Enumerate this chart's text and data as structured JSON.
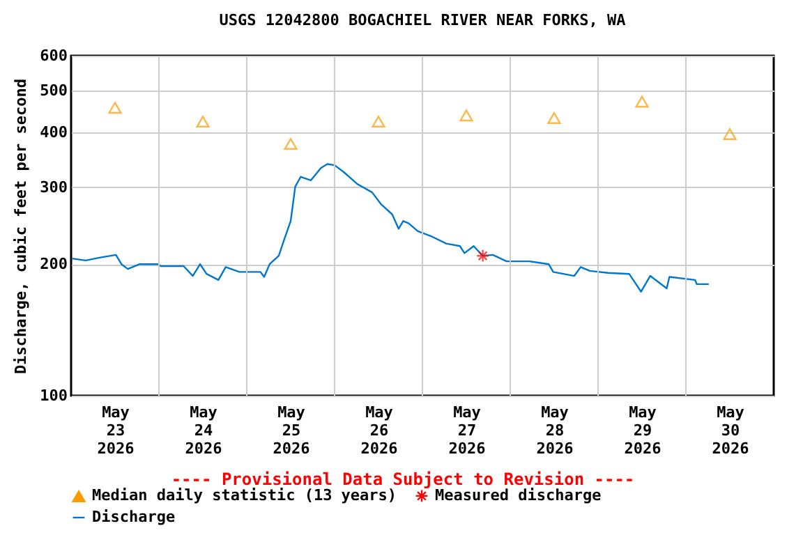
{
  "chart_data": {
    "type": "line",
    "title": "USGS 12042800 BOGACHIEL RIVER NEAR FORKS, WA",
    "ylabel": "Discharge, cubic feet per second",
    "annotations": [
      "---- Provisional Data Subject to Revision ----"
    ],
    "xlim": [
      "2026-05-23T00:00",
      "2026-05-31T00:00"
    ],
    "xticks": [
      {
        "value": "2026-05-23T12:00",
        "label": "May\n23\n2026"
      },
      {
        "value": "2026-05-24T00:00",
        "label": null
      },
      {
        "value": "2026-05-24T12:00",
        "label": "May\n24\n2026"
      },
      {
        "value": "2026-05-25T00:00",
        "label": null
      },
      {
        "value": "2026-05-25T12:00",
        "label": "May\n25\n2026"
      },
      {
        "value": "2026-05-26T00:00",
        "label": null
      },
      {
        "value": "2026-05-26T12:00",
        "label": "May\n26\n2026"
      },
      {
        "value": "2026-05-27T00:00",
        "label": null
      },
      {
        "value": "2026-05-27T12:00",
        "label": "May\n27\n2026"
      },
      {
        "value": "2026-05-28T00:00",
        "label": null
      },
      {
        "value": "2026-05-28T12:00",
        "label": "May\n28\n2026"
      },
      {
        "value": "2026-05-29T00:00",
        "label": null
      },
      {
        "value": "2026-05-29T12:00",
        "label": "May\n29\n2026"
      },
      {
        "value": "2026-05-30T00:00",
        "label": null
      },
      {
        "value": "2026-05-30T12:00",
        "label": "May\n30\n2026"
      }
    ],
    "ylim": [
      100,
      600
    ],
    "yticks": [
      100,
      200,
      300,
      400,
      500,
      600
    ],
    "log": "y",
    "grid": true,
    "legend": "bottom",
    "series": [
      {
        "name": "Median daily statistic (13 years)",
        "type": "scatter",
        "marker": "triangle",
        "color": "#ff9900",
        "x": [
          "2026-05-23T12:00",
          "2026-05-24T12:00",
          "2026-05-25T12:00",
          "2026-05-26T12:00",
          "2026-05-27T12:00",
          "2026-05-28T12:00",
          "2026-05-29T12:00",
          "2026-05-30T12:00"
        ],
        "values": [
          456,
          424,
          377,
          424,
          438,
          432,
          471,
          397
        ]
      },
      {
        "name": "Measured discharge",
        "type": "scatter",
        "marker": "cross",
        "color": "#ff0000",
        "x": [
          "2026-05-27T16:30"
        ],
        "values": [
          209
        ]
      },
      {
        "name": "Discharge",
        "type": "line",
        "color": "#0077cc",
        "x": [
          "2026-05-23T00:15",
          "2026-05-23T04:00",
          "2026-05-23T07:45",
          "2026-05-23T12:15",
          "2026-05-23T13:45",
          "2026-05-23T15:30",
          "2026-05-23T18:45",
          "2026-05-23T23:45",
          "2026-05-24T00:30",
          "2026-05-24T06:45",
          "2026-05-24T09:15",
          "2026-05-24T11:15",
          "2026-05-24T13:00",
          "2026-05-24T16:15",
          "2026-05-24T18:15",
          "2026-05-24T22:00",
          "2026-05-25T03:45",
          "2026-05-25T04:45",
          "2026-05-25T06:15",
          "2026-05-25T08:45",
          "2026-05-25T10:15",
          "2026-05-25T12:00",
          "2026-05-25T13:15",
          "2026-05-25T14:45",
          "2026-05-25T17:30",
          "2026-05-25T20:15",
          "2026-05-25T22:00",
          "2026-05-26T00:00",
          "2026-05-26T02:30",
          "2026-05-26T06:15",
          "2026-05-26T10:15",
          "2026-05-26T12:45",
          "2026-05-26T15:45",
          "2026-05-26T17:30",
          "2026-05-26T18:45",
          "2026-05-26T20:15",
          "2026-05-26T22:45",
          "2026-05-27T02:45",
          "2026-05-27T06:30",
          "2026-05-27T10:15",
          "2026-05-27T11:30",
          "2026-05-27T14:00",
          "2026-05-27T16:30",
          "2026-05-27T19:15",
          "2026-05-27T23:00",
          "2026-05-28T05:15",
          "2026-05-28T10:30",
          "2026-05-28T11:45",
          "2026-05-28T17:30",
          "2026-05-28T19:15",
          "2026-05-28T21:45",
          "2026-05-29T02:45",
          "2026-05-29T08:30",
          "2026-05-29T11:45",
          "2026-05-29T14:15",
          "2026-05-29T18:45",
          "2026-05-29T19:30",
          "2026-05-30T02:30",
          "2026-05-30T03:00",
          "2026-05-30T06:15"
        ],
        "values": [
          206,
          204,
          207,
          210,
          200,
          195,
          200,
          200,
          198,
          198,
          188,
          200,
          190,
          184,
          197,
          192,
          192,
          187,
          200,
          209,
          228,
          251,
          301,
          317,
          311,
          332,
          339,
          337,
          325,
          305,
          292,
          274,
          260,
          241,
          251,
          248,
          238,
          231,
          223,
          220,
          212,
          220,
          209,
          210,
          203,
          203,
          200,
          192,
          188,
          197,
          193,
          191,
          190,
          173,
          188,
          176,
          187,
          184,
          180,
          180
        ]
      }
    ]
  }
}
